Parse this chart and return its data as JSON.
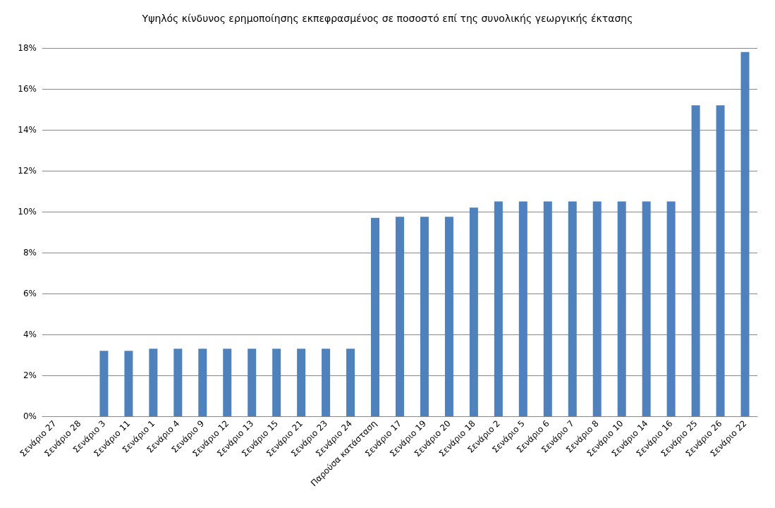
{
  "chart_data": {
    "type": "bar",
    "title": "Υψηλός κίνδυνος ερημοποίησης εκπεφρασμένος σε ποσοστό επί της συνολικής γεωργικής έκτασης",
    "categories": [
      "Σενάριο 27",
      "Σενάριο 28",
      "Σενάριο 3",
      "Σενάριο 11",
      "Σενάριο 1",
      "Σενάριο 4",
      "Σενάριο 9",
      "Σενάριο 12",
      "Σενάριο 13",
      "Σενάριο 15",
      "Σενάριο 21",
      "Σενάριο 23",
      "Σενάριο 24",
      "Παρούσα κατάσταση",
      "Σενάριο 17",
      "Σενάριο 19",
      "Σενάριο 20",
      "Σενάριο 18",
      "Σενάριο 2",
      "Σενάριο 5",
      "Σενάριο 6",
      "Σενάριο 7",
      "Σενάριο 8",
      "Σενάριο 10",
      "Σενάριο 14",
      "Σενάριο 16",
      "Σενάριο 25",
      "Σενάριο 26",
      "Σενάριο 22"
    ],
    "values": [
      0,
      0,
      3.2,
      3.2,
      3.3,
      3.3,
      3.3,
      3.3,
      3.3,
      3.3,
      3.3,
      3.3,
      3.3,
      9.7,
      9.75,
      9.75,
      9.75,
      10.2,
      10.5,
      10.5,
      10.5,
      10.5,
      10.5,
      10.5,
      10.5,
      10.5,
      15.2,
      15.2,
      17.8
    ],
    "color": "#4f81bd",
    "ylim": [
      0,
      18
    ],
    "yticks": [
      {
        "value": 0,
        "label": "0%"
      },
      {
        "value": 2,
        "label": "2%"
      },
      {
        "value": 4,
        "label": "4%"
      },
      {
        "value": 6,
        "label": "6%"
      },
      {
        "value": 8,
        "label": "8%"
      },
      {
        "value": 10,
        "label": "10%"
      },
      {
        "value": 12,
        "label": "12%"
      },
      {
        "value": 14,
        "label": "14%"
      },
      {
        "value": 16,
        "label": "16%"
      },
      {
        "value": 18,
        "label": "18%"
      }
    ],
    "grid": "y"
  }
}
